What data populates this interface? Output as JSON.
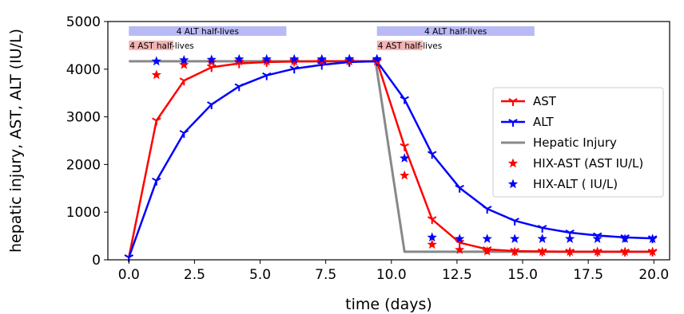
{
  "chart_data": {
    "type": "line",
    "xlabel": "time (days)",
    "ylabel": "hepatic injury, AST, ALT (IU/L)",
    "xlim": [
      -0.8,
      20.6
    ],
    "ylim": [
      0,
      5000
    ],
    "x_ticks": [
      "0.0",
      "2.5",
      "5.0",
      "7.5",
      "10.0",
      "12.5",
      "15.0",
      "17.5",
      "20.0"
    ],
    "y_ticks": [
      "0",
      "1000",
      "2000",
      "3000",
      "4000",
      "5000"
    ],
    "grid": false,
    "legend_position": "center-right",
    "series": [
      {
        "name": "AST",
        "kind": "line",
        "marker": "tri_down",
        "color": "#ff0000",
        "x": [
          0,
          1.05,
          2.1,
          3.15,
          4.2,
          5.25,
          6.3,
          7.35,
          8.4,
          9.45,
          10.5,
          11.55,
          12.6,
          13.65,
          14.7,
          15.75,
          16.8,
          17.85,
          18.9,
          19.95
        ],
        "y": [
          50,
          2920,
          3760,
          4040,
          4120,
          4150,
          4160,
          4165,
          4165,
          4165,
          2380,
          850,
          360,
          220,
          185,
          175,
          170,
          170,
          170,
          170
        ]
      },
      {
        "name": "ALT",
        "kind": "line",
        "marker": "tri_down",
        "color": "#0000ff",
        "x": [
          0,
          1.05,
          2.1,
          3.15,
          4.2,
          5.25,
          6.3,
          7.35,
          8.4,
          9.45,
          10.5,
          11.55,
          12.6,
          13.65,
          14.7,
          15.75,
          16.8,
          17.85,
          18.9,
          19.95
        ],
        "y": [
          50,
          1660,
          2660,
          3260,
          3640,
          3870,
          4010,
          4090,
          4150,
          4165,
          3370,
          2220,
          1510,
          1070,
          820,
          670,
          570,
          510,
          470,
          450
        ]
      },
      {
        "name": "Hepatic Injury",
        "kind": "line",
        "marker": "none",
        "color": "#888888",
        "x": [
          0,
          9.4,
          10.5,
          20.0
        ],
        "y": [
          4165,
          4165,
          170,
          170
        ]
      },
      {
        "name": "HIX-AST (AST IU/L)",
        "kind": "scatter",
        "marker": "star",
        "color": "#ff0000",
        "x": [
          1.05,
          2.1,
          3.15,
          4.2,
          5.25,
          6.3,
          7.35,
          8.4,
          9.45,
          10.5,
          11.55,
          12.6,
          13.65,
          14.7,
          15.75,
          16.8,
          17.85,
          18.9,
          19.95
        ],
        "y": [
          3880,
          4090,
          4150,
          4165,
          4165,
          4165,
          4165,
          4165,
          4165,
          1770,
          320,
          210,
          180,
          170,
          170,
          170,
          170,
          170,
          170
        ]
      },
      {
        "name": "HIX-ALT ( IU/L)",
        "kind": "scatter",
        "marker": "star",
        "color": "#0000ff",
        "x": [
          1.05,
          2.1,
          3.15,
          4.2,
          5.25,
          6.3,
          7.35,
          8.4,
          9.45,
          10.5,
          11.55,
          12.6,
          13.65,
          14.7,
          15.75,
          16.8,
          17.85,
          18.9,
          19.95
        ],
        "y": [
          4165,
          4190,
          4200,
          4210,
          4210,
          4210,
          4210,
          4215,
          4215,
          2130,
          470,
          440,
          440,
          440,
          440,
          440,
          440,
          440,
          440
        ]
      }
    ],
    "annotation_bands": [
      {
        "label": "4 ALT half-lives",
        "x_start": 0,
        "x_end": 6.0,
        "y": 4800,
        "color": "#b9b9f5"
      },
      {
        "label": "4 AST half-lives",
        "x_start": 0,
        "x_end": 1.7,
        "y": 4500,
        "color": "#f5b3b3"
      },
      {
        "label": "4 ALT half-lives",
        "x_start": 9.45,
        "x_end": 15.45,
        "y": 4800,
        "color": "#b9b9f5"
      },
      {
        "label": "4 AST half-lives",
        "x_start": 9.45,
        "x_end": 11.2,
        "y": 4500,
        "color": "#f5b3b3"
      }
    ]
  }
}
